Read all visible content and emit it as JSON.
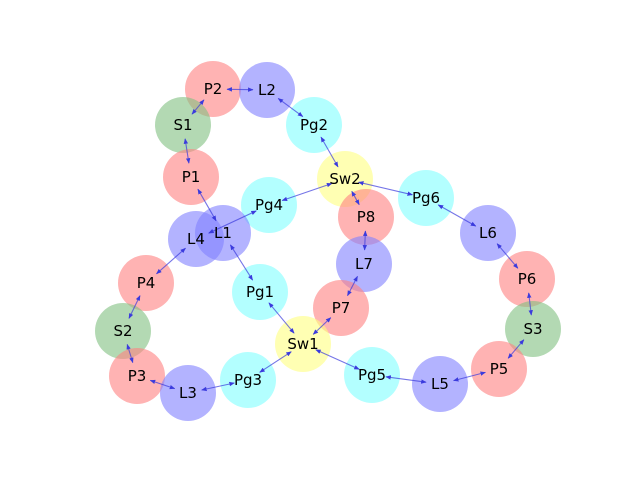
{
  "colors": {
    "P": "#ff8080",
    "L": "#8080ff",
    "Pg": "#80ffff",
    "S": "#80c080",
    "Sw": "#ffff80",
    "edge": "#3b3bdd"
  },
  "nodes": [
    {
      "id": "P2",
      "label": "P2",
      "type": "P"
    },
    {
      "id": "L2",
      "label": "L2",
      "type": "L"
    },
    {
      "id": "S1",
      "label": "S1",
      "type": "S"
    },
    {
      "id": "Pg2",
      "label": "Pg2",
      "type": "Pg"
    },
    {
      "id": "P1",
      "label": "P1",
      "type": "P"
    },
    {
      "id": "Sw2",
      "label": "Sw2",
      "type": "Sw"
    },
    {
      "id": "Pg6",
      "label": "Pg6",
      "type": "Pg"
    },
    {
      "id": "Pg4",
      "label": "Pg4",
      "type": "Pg"
    },
    {
      "id": "P8",
      "label": "P8",
      "type": "P"
    },
    {
      "id": "L6",
      "label": "L6",
      "type": "L"
    },
    {
      "id": "L4",
      "label": "L4",
      "type": "L"
    },
    {
      "id": "L1",
      "label": "L1",
      "type": "L"
    },
    {
      "id": "L7",
      "label": "L7",
      "type": "L"
    },
    {
      "id": "P4",
      "label": "P4",
      "type": "P"
    },
    {
      "id": "P6",
      "label": "P6",
      "type": "P"
    },
    {
      "id": "Pg1",
      "label": "Pg1",
      "type": "Pg"
    },
    {
      "id": "P7",
      "label": "P7",
      "type": "P"
    },
    {
      "id": "S2",
      "label": "S2",
      "type": "S"
    },
    {
      "id": "S3",
      "label": "S3",
      "type": "S"
    },
    {
      "id": "Sw1",
      "label": "Sw1",
      "type": "Sw"
    },
    {
      "id": "P3",
      "label": "P3",
      "type": "P"
    },
    {
      "id": "Pg3",
      "label": "Pg3",
      "type": "Pg"
    },
    {
      "id": "Pg5",
      "label": "Pg5",
      "type": "Pg"
    },
    {
      "id": "P5",
      "label": "P5",
      "type": "P"
    },
    {
      "id": "L3",
      "label": "L3",
      "type": "L"
    },
    {
      "id": "L5",
      "label": "L5",
      "type": "L"
    }
  ],
  "edges": [
    [
      "P2",
      "L2"
    ],
    [
      "P2",
      "S1"
    ],
    [
      "S1",
      "P1"
    ],
    [
      "P1",
      "L1"
    ],
    [
      "L2",
      "Pg2"
    ],
    [
      "Pg2",
      "Sw2"
    ],
    [
      "Sw2",
      "Pg4"
    ],
    [
      "Pg4",
      "L4"
    ],
    [
      "Sw2",
      "P8"
    ],
    [
      "Sw2",
      "Pg6"
    ],
    [
      "P8",
      "L7"
    ],
    [
      "L7",
      "P7"
    ],
    [
      "P7",
      "Sw1"
    ],
    [
      "Pg6",
      "L6"
    ],
    [
      "L6",
      "P6"
    ],
    [
      "P6",
      "S3"
    ],
    [
      "S3",
      "P5"
    ],
    [
      "P5",
      "L5"
    ],
    [
      "L5",
      "Pg5"
    ],
    [
      "Pg5",
      "Sw1"
    ],
    [
      "L1",
      "Pg1"
    ],
    [
      "Pg1",
      "Sw1"
    ],
    [
      "Sw1",
      "Pg3"
    ],
    [
      "Pg3",
      "L3"
    ],
    [
      "L3",
      "P3"
    ],
    [
      "P3",
      "S2"
    ],
    [
      "S2",
      "P4"
    ],
    [
      "P4",
      "L4"
    ]
  ]
}
